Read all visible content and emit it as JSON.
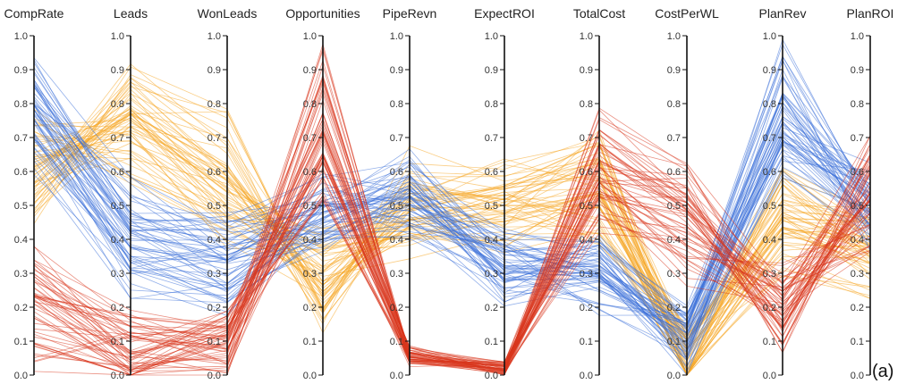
{
  "panel_label": "(a)",
  "chart_data": {
    "type": "parallel-coordinates",
    "axes": [
      "CompRate",
      "Leads",
      "WonLeads",
      "Opportunities",
      "PipeRevn",
      "ExpectROI",
      "TotalCost",
      "CostPerWL",
      "PlanRev",
      "PlanROI"
    ],
    "ylim": [
      0,
      1
    ],
    "tick_labels": [
      "0.0",
      "0.1",
      "0.2",
      "0.3",
      "0.4",
      "0.5",
      "0.6",
      "0.7",
      "0.8",
      "0.9",
      "1.0"
    ],
    "colors": {
      "blue": "#3a6fd8",
      "orange": "#f5a623",
      "red": "#d8341c"
    },
    "series": [
      {
        "color_key": "blue",
        "lines_per_profile": 11,
        "profiles": [
          [
            0.82,
            0.45,
            0.38,
            0.5,
            0.55,
            0.33,
            0.32,
            0.12,
            0.8,
            0.5
          ],
          [
            0.78,
            0.38,
            0.33,
            0.46,
            0.52,
            0.3,
            0.28,
            0.1,
            0.75,
            0.52
          ],
          [
            0.72,
            0.35,
            0.3,
            0.48,
            0.58,
            0.36,
            0.36,
            0.08,
            0.7,
            0.55
          ],
          [
            0.85,
            0.5,
            0.42,
            0.52,
            0.5,
            0.28,
            0.3,
            0.15,
            0.9,
            0.45
          ],
          [
            0.68,
            0.3,
            0.26,
            0.44,
            0.48,
            0.32,
            0.26,
            0.1,
            0.65,
            0.48
          ]
        ]
      },
      {
        "color_key": "orange",
        "lines_per_profile": 11,
        "profiles": [
          [
            0.6,
            0.75,
            0.55,
            0.3,
            0.48,
            0.5,
            0.55,
            0.05,
            0.45,
            0.4
          ],
          [
            0.55,
            0.8,
            0.62,
            0.25,
            0.55,
            0.55,
            0.6,
            0.04,
            0.4,
            0.35
          ],
          [
            0.65,
            0.7,
            0.5,
            0.35,
            0.45,
            0.45,
            0.5,
            0.06,
            0.55,
            0.42
          ],
          [
            0.5,
            0.85,
            0.7,
            0.2,
            0.6,
            0.52,
            0.65,
            0.03,
            0.38,
            0.3
          ],
          [
            0.7,
            0.65,
            0.45,
            0.32,
            0.42,
            0.48,
            0.45,
            0.05,
            0.5,
            0.38
          ]
        ]
      },
      {
        "color_key": "red",
        "lines_per_profile": 11,
        "profiles": [
          [
            0.2,
            0.09,
            0.09,
            0.7,
            0.05,
            0.02,
            0.6,
            0.45,
            0.2,
            0.55
          ],
          [
            0.15,
            0.08,
            0.07,
            0.8,
            0.06,
            0.02,
            0.65,
            0.5,
            0.15,
            0.6
          ],
          [
            0.25,
            0.1,
            0.1,
            0.6,
            0.04,
            0.02,
            0.55,
            0.4,
            0.25,
            0.5
          ],
          [
            0.1,
            0.07,
            0.08,
            0.9,
            0.05,
            0.02,
            0.7,
            0.55,
            0.18,
            0.65
          ],
          [
            0.3,
            0.11,
            0.11,
            0.65,
            0.07,
            0.02,
            0.5,
            0.35,
            0.22,
            0.45
          ]
        ]
      }
    ]
  }
}
